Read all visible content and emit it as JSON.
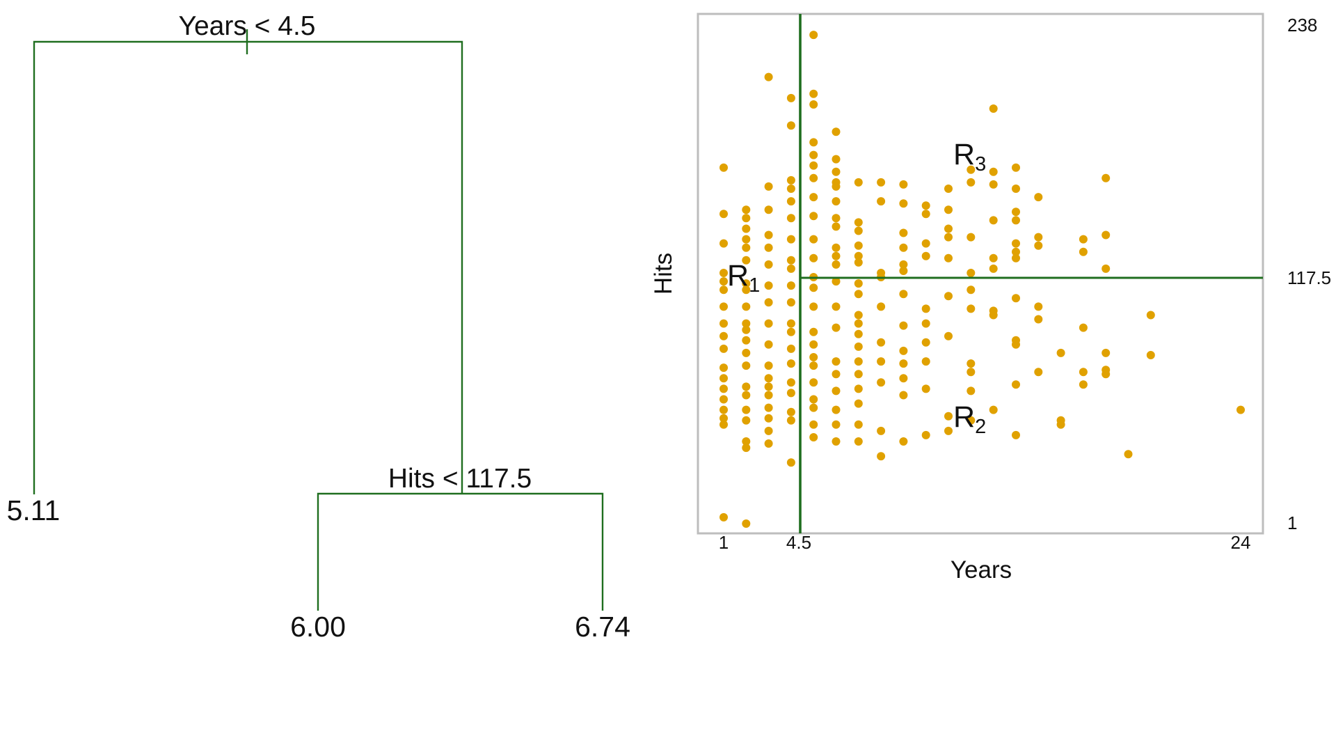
{
  "colors": {
    "tree_line": "#1f6e1f",
    "split_line": "#1f6e1f",
    "point": "#e0a100",
    "frame": "#bdbdbd"
  },
  "chart_data": [
    {
      "type": "tree",
      "root": {
        "split": "Years < 4.5"
      },
      "left_leaf": {
        "value": "5.11"
      },
      "right_node": {
        "split": "Hits < 117.5"
      },
      "right_left_leaf": {
        "value": "6.00"
      },
      "right_right_leaf": {
        "value": "6.74"
      }
    },
    {
      "type": "scatter",
      "xlabel": "Years",
      "ylabel": "Hits",
      "xlim": [
        1,
        24
      ],
      "ylim": [
        1,
        238
      ],
      "x_ticks": [
        "1",
        "4.5",
        "24"
      ],
      "y_ticks": [
        "238",
        "117.5",
        "1"
      ],
      "grid": false,
      "splits": {
        "years": 4.5,
        "hits": 117.5
      },
      "regions": [
        {
          "name": "R",
          "sub": "1"
        },
        {
          "name": "R",
          "sub": "2"
        },
        {
          "name": "R",
          "sub": "3"
        }
      ],
      "points": [
        [
          1,
          170
        ],
        [
          1,
          148
        ],
        [
          1,
          134
        ],
        [
          1,
          120
        ],
        [
          1,
          116
        ],
        [
          1,
          112
        ],
        [
          1,
          104
        ],
        [
          1,
          96
        ],
        [
          1,
          90
        ],
        [
          1,
          84
        ],
        [
          1,
          75
        ],
        [
          1,
          70
        ],
        [
          1,
          65
        ],
        [
          1,
          60
        ],
        [
          1,
          55
        ],
        [
          1,
          51
        ],
        [
          1,
          48
        ],
        [
          1,
          4
        ],
        [
          2,
          150
        ],
        [
          2,
          146
        ],
        [
          2,
          141
        ],
        [
          2,
          136
        ],
        [
          2,
          132
        ],
        [
          2,
          126
        ],
        [
          2,
          115
        ],
        [
          2,
          112
        ],
        [
          2,
          104
        ],
        [
          2,
          96
        ],
        [
          2,
          93
        ],
        [
          2,
          88
        ],
        [
          2,
          82
        ],
        [
          2,
          76
        ],
        [
          2,
          66
        ],
        [
          2,
          62
        ],
        [
          2,
          55
        ],
        [
          2,
          50
        ],
        [
          2,
          40
        ],
        [
          2,
          37
        ],
        [
          2,
          1
        ],
        [
          3,
          213
        ],
        [
          3,
          161
        ],
        [
          3,
          150
        ],
        [
          3,
          138
        ],
        [
          3,
          132
        ],
        [
          3,
          124
        ],
        [
          3,
          114
        ],
        [
          3,
          106
        ],
        [
          3,
          96
        ],
        [
          3,
          86
        ],
        [
          3,
          76
        ],
        [
          3,
          70
        ],
        [
          3,
          66
        ],
        [
          3,
          62
        ],
        [
          3,
          56
        ],
        [
          3,
          51
        ],
        [
          3,
          45
        ],
        [
          3,
          39
        ],
        [
          4,
          203
        ],
        [
          4,
          190
        ],
        [
          4,
          164
        ],
        [
          4,
          160
        ],
        [
          4,
          154
        ],
        [
          4,
          146
        ],
        [
          4,
          136
        ],
        [
          4,
          126
        ],
        [
          4,
          122
        ],
        [
          4,
          114
        ],
        [
          4,
          106
        ],
        [
          4,
          96
        ],
        [
          4,
          92
        ],
        [
          4,
          84
        ],
        [
          4,
          77
        ],
        [
          4,
          68
        ],
        [
          4,
          63
        ],
        [
          4,
          54
        ],
        [
          4,
          50
        ],
        [
          4,
          30
        ],
        [
          5,
          233
        ],
        [
          5,
          205
        ],
        [
          5,
          200
        ],
        [
          5,
          182
        ],
        [
          5,
          176
        ],
        [
          5,
          171
        ],
        [
          5,
          165
        ],
        [
          5,
          156
        ],
        [
          5,
          147
        ],
        [
          5,
          136
        ],
        [
          5,
          127
        ],
        [
          5,
          118
        ],
        [
          5,
          113
        ],
        [
          5,
          104
        ],
        [
          5,
          92
        ],
        [
          5,
          86
        ],
        [
          5,
          80
        ],
        [
          5,
          76
        ],
        [
          5,
          68
        ],
        [
          5,
          60
        ],
        [
          5,
          56
        ],
        [
          5,
          48
        ],
        [
          5,
          42
        ],
        [
          6,
          187
        ],
        [
          6,
          174
        ],
        [
          6,
          168
        ],
        [
          6,
          163
        ],
        [
          6,
          161
        ],
        [
          6,
          154
        ],
        [
          6,
          146
        ],
        [
          6,
          142
        ],
        [
          6,
          132
        ],
        [
          6,
          128
        ],
        [
          6,
          124
        ],
        [
          6,
          116
        ],
        [
          6,
          104
        ],
        [
          6,
          94
        ],
        [
          6,
          78
        ],
        [
          6,
          72
        ],
        [
          6,
          64
        ],
        [
          6,
          55
        ],
        [
          6,
          48
        ],
        [
          6,
          40
        ],
        [
          7,
          163
        ],
        [
          7,
          144
        ],
        [
          7,
          140
        ],
        [
          7,
          133
        ],
        [
          7,
          128
        ],
        [
          7,
          125
        ],
        [
          7,
          115
        ],
        [
          7,
          110
        ],
        [
          7,
          100
        ],
        [
          7,
          96
        ],
        [
          7,
          91
        ],
        [
          7,
          85
        ],
        [
          7,
          78
        ],
        [
          7,
          72
        ],
        [
          7,
          65
        ],
        [
          7,
          58
        ],
        [
          7,
          48
        ],
        [
          7,
          40
        ],
        [
          8,
          163
        ],
        [
          8,
          154
        ],
        [
          8,
          120
        ],
        [
          8,
          118
        ],
        [
          8,
          104
        ],
        [
          8,
          87
        ],
        [
          8,
          78
        ],
        [
          8,
          68
        ],
        [
          8,
          45
        ],
        [
          8,
          33
        ],
        [
          9,
          162
        ],
        [
          9,
          153
        ],
        [
          9,
          139
        ],
        [
          9,
          132
        ],
        [
          9,
          124
        ],
        [
          9,
          121
        ],
        [
          9,
          110
        ],
        [
          9,
          95
        ],
        [
          9,
          83
        ],
        [
          9,
          77
        ],
        [
          9,
          70
        ],
        [
          9,
          62
        ],
        [
          9,
          40
        ],
        [
          10,
          152
        ],
        [
          10,
          148
        ],
        [
          10,
          134
        ],
        [
          10,
          128
        ],
        [
          10,
          103
        ],
        [
          10,
          96
        ],
        [
          10,
          87
        ],
        [
          10,
          78
        ],
        [
          10,
          65
        ],
        [
          10,
          43
        ],
        [
          11,
          160
        ],
        [
          11,
          150
        ],
        [
          11,
          141
        ],
        [
          11,
          137
        ],
        [
          11,
          127
        ],
        [
          11,
          109
        ],
        [
          11,
          90
        ],
        [
          11,
          52
        ],
        [
          11,
          45
        ],
        [
          12,
          169
        ],
        [
          12,
          163
        ],
        [
          12,
          137
        ],
        [
          12,
          120
        ],
        [
          12,
          112
        ],
        [
          12,
          103
        ],
        [
          12,
          77
        ],
        [
          12,
          73
        ],
        [
          12,
          64
        ],
        [
          12,
          50
        ],
        [
          13,
          198
        ],
        [
          13,
          168
        ],
        [
          13,
          162
        ],
        [
          13,
          145
        ],
        [
          13,
          127
        ],
        [
          13,
          122
        ],
        [
          13,
          102
        ],
        [
          13,
          100
        ],
        [
          13,
          55
        ],
        [
          14,
          170
        ],
        [
          14,
          160
        ],
        [
          14,
          149
        ],
        [
          14,
          145
        ],
        [
          14,
          134
        ],
        [
          14,
          130
        ],
        [
          14,
          127
        ],
        [
          14,
          108
        ],
        [
          14,
          88
        ],
        [
          14,
          86
        ],
        [
          14,
          67
        ],
        [
          14,
          43
        ],
        [
          15,
          156
        ],
        [
          15,
          137
        ],
        [
          15,
          133
        ],
        [
          15,
          104
        ],
        [
          15,
          98
        ],
        [
          15,
          73
        ],
        [
          16,
          82
        ],
        [
          16,
          50
        ],
        [
          16,
          48
        ],
        [
          17,
          136
        ],
        [
          17,
          130
        ],
        [
          17,
          94
        ],
        [
          17,
          73
        ],
        [
          17,
          67
        ],
        [
          18,
          165
        ],
        [
          18,
          138
        ],
        [
          18,
          122
        ],
        [
          18,
          82
        ],
        [
          18,
          74
        ],
        [
          18,
          72
        ],
        [
          19,
          34
        ],
        [
          20,
          100
        ],
        [
          20,
          81
        ],
        [
          24,
          55
        ]
      ]
    }
  ]
}
